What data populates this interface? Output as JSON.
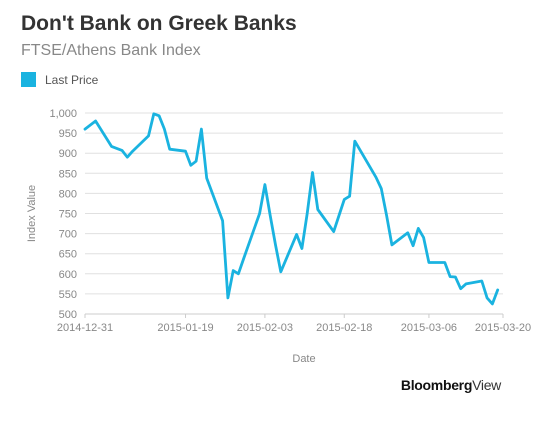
{
  "header": {
    "title": "Don't Bank on Greek Banks",
    "subtitle": "FTSE/Athens Bank Index"
  },
  "legend": {
    "label": "Last Price",
    "color": "#1ab3e0"
  },
  "branding": {
    "part1": "Bloomberg",
    "part2": "View"
  },
  "chart_data": {
    "type": "line",
    "title": "Don't Bank on Greek Banks",
    "subtitle": "FTSE/Athens Bank Index",
    "xlabel": "Date",
    "ylabel": "Index Value",
    "ylim": [
      500,
      1000
    ],
    "yticks": [
      500,
      550,
      600,
      650,
      700,
      750,
      800,
      850,
      900,
      950,
      1000
    ],
    "ytick_labels": [
      "500",
      "550",
      "600",
      "650",
      "700",
      "750",
      "800",
      "850",
      "900",
      "950",
      "1,000"
    ],
    "xlim": [
      "2014-12-31",
      "2015-03-20"
    ],
    "xtick_labels": [
      "2014-12-31",
      "2015-01-19",
      "2015-02-03",
      "2015-02-18",
      "2015-03-06",
      "2015-03-20"
    ],
    "grid": true,
    "legend_position": "top-left",
    "series": [
      {
        "name": "Last Price",
        "color": "#1ab3e0",
        "x": [
          "2014-12-31",
          "2015-01-02",
          "2015-01-05",
          "2015-01-07",
          "2015-01-08",
          "2015-01-09",
          "2015-01-12",
          "2015-01-13",
          "2015-01-14",
          "2015-01-15",
          "2015-01-16",
          "2015-01-19",
          "2015-01-20",
          "2015-01-21",
          "2015-01-22",
          "2015-01-23",
          "2015-01-26",
          "2015-01-27",
          "2015-01-28",
          "2015-01-29",
          "2015-01-30",
          "2015-02-02",
          "2015-02-03",
          "2015-02-04",
          "2015-02-05",
          "2015-02-06",
          "2015-02-09",
          "2015-02-10",
          "2015-02-11",
          "2015-02-12",
          "2015-02-13",
          "2015-02-16",
          "2015-02-17",
          "2015-02-18",
          "2015-02-19",
          "2015-02-20",
          "2015-02-24",
          "2015-02-25",
          "2015-02-26",
          "2015-02-27",
          "2015-03-02",
          "2015-03-03",
          "2015-03-04",
          "2015-03-05",
          "2015-03-06",
          "2015-03-09",
          "2015-03-10",
          "2015-03-11",
          "2015-03-12",
          "2015-03-13",
          "2015-03-16",
          "2015-03-17",
          "2015-03-18",
          "2015-03-19",
          "2015-03-20"
        ],
        "y": [
          960,
          980,
          917,
          907,
          890,
          905,
          943,
          998,
          993,
          960,
          910,
          905,
          870,
          880,
          960,
          838,
          732,
          540,
          608,
          600,
          638,
          750,
          822,
          745,
          672,
          605,
          698,
          663,
          750,
          852,
          760,
          705,
          745,
          785,
          793,
          930,
          840,
          812,
          745,
          672,
          702,
          670,
          713,
          690,
          628,
          628,
          593,
          592,
          563,
          575,
          582,
          540,
          525,
          560,
          null
        ]
      }
    ]
  }
}
